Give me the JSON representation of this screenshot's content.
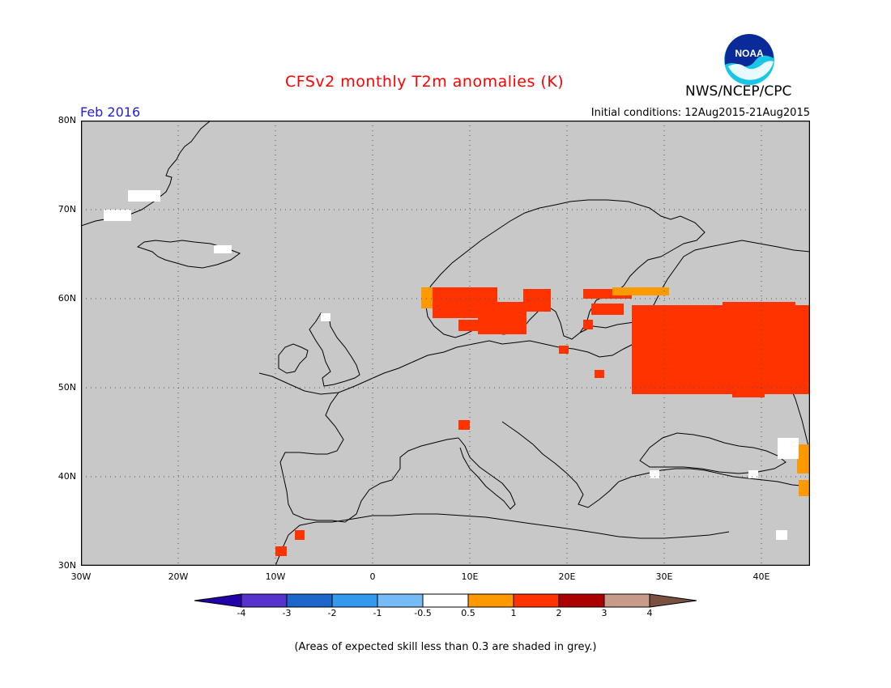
{
  "title": "CFSv2 monthly T2m anomalies (K)",
  "agency": "NWS/NCEP/CPC",
  "logo_text": "NOAA",
  "target_month": "Feb 2016",
  "initial_conditions": "Initial conditions: 12Aug2015-21Aug2015",
  "footnote": "(Areas of expected skill less than 0.3 are shaded in grey.)",
  "map": {
    "lon_range": [
      -30,
      45
    ],
    "lat_range": [
      30,
      80
    ],
    "background_color": "#c8c8c8",
    "lat_labels": [
      "80N",
      "70N",
      "60N",
      "50N",
      "40N",
      "30N"
    ],
    "lon_labels": [
      "30W",
      "20W",
      "10W",
      "0",
      "10E",
      "20E",
      "30E",
      "40E"
    ],
    "grid": "dotted",
    "anomaly_areas": [
      {
        "region": "western Russia",
        "category": "1 to 2",
        "color": "#ff3300"
      },
      {
        "region": "southern Norway and Sweden",
        "category": "1 to 2",
        "color": "#ff3300"
      },
      {
        "region": "southern Finland",
        "category": "0.5 to 1",
        "color": "#ff9900"
      },
      {
        "region": "Caucasus",
        "category": "0.5 to 1",
        "color": "#ff9900"
      },
      {
        "region": "Morocco",
        "category": "1 to 2",
        "color": "#ff3300"
      }
    ]
  },
  "colorbar": {
    "ticks": [
      "-4",
      "-3",
      "-2",
      "-1",
      "-0.5",
      "0.5",
      "1",
      "2",
      "3",
      "4"
    ],
    "colors": [
      "#2200aa",
      "#5533cc",
      "#1f66cc",
      "#3399ee",
      "#77bbf5",
      "#ffffff",
      "#ff9900",
      "#ff3300",
      "#aa0000",
      "#c89a8a",
      "#7a5040"
    ]
  }
}
